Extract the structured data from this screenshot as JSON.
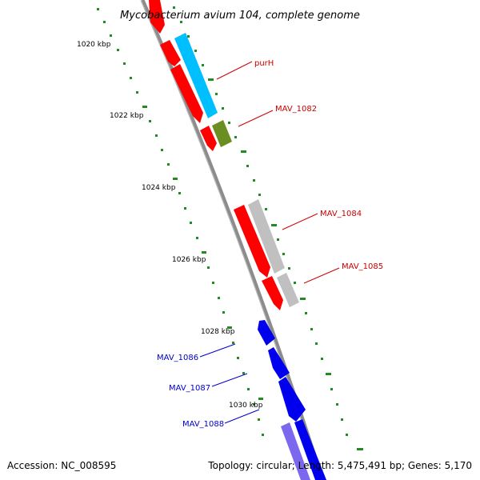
{
  "title": "Mycobacterium avium 104, complete genome",
  "accession_text": "Accession: NC_008595",
  "summary_text": "Topology: circular; Length: 5,475,491 bp; Genes: 5,170",
  "colors": {
    "backbone": "#8c8c8c",
    "tick": "#228b22",
    "forward_gene": "#ff0000",
    "forward_cds": "#00bfff",
    "forward_misc": "#6b8e23",
    "forward_pseudo": "#c0c0c0",
    "reverse_gene": "#0000ee",
    "reverse_cds": "#7b68ee",
    "label_forward": "#cc0000",
    "label_reverse": "#0000cc"
  },
  "kbp_labels": [
    "1020 kbp",
    "1022 kbp",
    "1024 kbp",
    "1026 kbp",
    "1028 kbp",
    "1030 kbp"
  ],
  "gene_labels": [
    {
      "text": "purH",
      "strand": "forward"
    },
    {
      "text": "MAV_1082",
      "strand": "forward"
    },
    {
      "text": "MAV_1084",
      "strand": "forward"
    },
    {
      "text": "MAV_1085",
      "strand": "forward"
    },
    {
      "text": "MAV_1086",
      "strand": "reverse"
    },
    {
      "text": "MAV_1087",
      "strand": "reverse"
    },
    {
      "text": "MAV_1088",
      "strand": "reverse"
    }
  ]
}
